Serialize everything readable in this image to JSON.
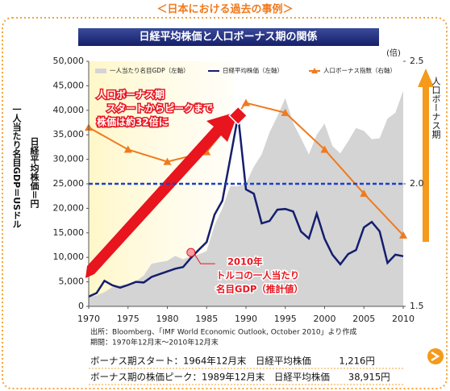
{
  "header": {
    "title": "＜日本における過去の事例＞",
    "banner": "日経平均株価と人口ボーナス期の関係"
  },
  "chart_data": {
    "type": "line",
    "ylabel": [
      "一人当たり名目GDP＝USドル",
      "日経平均株価＝円"
    ],
    "y2label": "人口ボーナス期",
    "y2unit": "(倍)",
    "x": [
      1970,
      1971,
      1972,
      1973,
      1974,
      1975,
      1976,
      1977,
      1978,
      1979,
      1980,
      1981,
      1982,
      1983,
      1984,
      1985,
      1986,
      1987,
      1988,
      1989,
      1990,
      1991,
      1992,
      1993,
      1994,
      1995,
      1996,
      1997,
      1998,
      1999,
      2000,
      2001,
      2002,
      2003,
      2004,
      2005,
      2006,
      2007,
      2008,
      2009,
      2010
    ],
    "xlim": [
      1970,
      2010
    ],
    "xticks": [
      1970,
      1975,
      1980,
      1985,
      1990,
      1995,
      2000,
      2005,
      2010
    ],
    "ylim": [
      0,
      50000
    ],
    "yticks": [
      0,
      {
        "value": 5000,
        "label": "5,000"
      },
      {
        "value": 10000,
        "label": "10,000"
      },
      {
        "value": 15000,
        "label": "15,000"
      },
      {
        "value": 20000,
        "label": "20,000"
      },
      {
        "value": 25000,
        "label": "25,000"
      },
      {
        "value": 30000,
        "label": "30,000"
      },
      {
        "value": 35000,
        "label": "35,000"
      },
      {
        "value": 40000,
        "label": "40,000"
      },
      {
        "value": 45000,
        "label": "45,000"
      },
      {
        "value": 50000,
        "label": "50,000"
      }
    ],
    "y2lim": [
      1.5,
      2.5
    ],
    "y2ticks": [
      1.5,
      {
        "value": 2,
        "label": "2.0"
      },
      2.5
    ],
    "reference_line": {
      "axis": "y2",
      "value": 2,
      "color": "#1e40c8"
    },
    "series": [
      {
        "name": "一人当たり名目GDP（左軸）",
        "kind": "area",
        "color": "#d4d4d4",
        "values": [
          2000,
          2200,
          2900,
          3900,
          4300,
          4600,
          5100,
          6300,
          8700,
          9000,
          9300,
          10300,
          9600,
          10200,
          10600,
          11300,
          16500,
          20000,
          24500,
          24500,
          25100,
          28500,
          31000,
          35500,
          38800,
          42500,
          37400,
          34300,
          31000,
          35000,
          37300,
          32700,
          31200,
          33700,
          36400,
          35800,
          34100,
          34300,
          38300,
          39500,
          44000
        ]
      },
      {
        "name": "日経平均株価（左軸）",
        "kind": "line",
        "color": "#141e6e",
        "values": [
          1987,
          2714,
          5208,
          4307,
          3817,
          4359,
          4991,
          4866,
          6002,
          6570,
          7116,
          7682,
          8017,
          9894,
          11543,
          13113,
          18701,
          21564,
          30159,
          38916,
          23849,
          22984,
          16925,
          17417,
          19723,
          19868,
          19361,
          15259,
          13842,
          18934,
          13786,
          10543,
          8579,
          10677,
          11489,
          16111,
          17226,
          15308,
          8860,
          10546,
          10229
        ]
      },
      {
        "name": "人口ボーナス指数（右軸）",
        "kind": "line",
        "axis": "y2",
        "color": "#f07a1e",
        "marker": "triangle",
        "x": [
          1970,
          1975,
          1980,
          1985,
          1990,
          1995,
          2000,
          2005,
          2010
        ],
        "values": [
          2.23,
          2.14,
          2.09,
          2.13,
          2.33,
          2.29,
          2.14,
          1.96,
          1.79
        ]
      }
    ],
    "annotations": [
      {
        "text": [
          "人口ボーナス期",
          "スタートからピークまで",
          "株価は約32倍に"
        ],
        "x": 1989,
        "y": 38916,
        "color": "#e8141e"
      },
      {
        "text": [
          "2010年",
          "トルコの一人当たり",
          "名目GDP（推計値）"
        ],
        "x": 1983,
        "y": 11000,
        "color": "#e8141e"
      }
    ]
  },
  "source": [
    "出所：Bloomberg、「IMF World Economic Outlook, October 2010」より作成",
    "期間：1970年12月末～2010年12月末"
  ],
  "footer": [
    "ボーナス期スタート：1964年12月末　日経平均株価　　　1,216円",
    "ボーナス期の株価ピーク：1989年12月末　日経平均株価　　38,915円"
  ]
}
